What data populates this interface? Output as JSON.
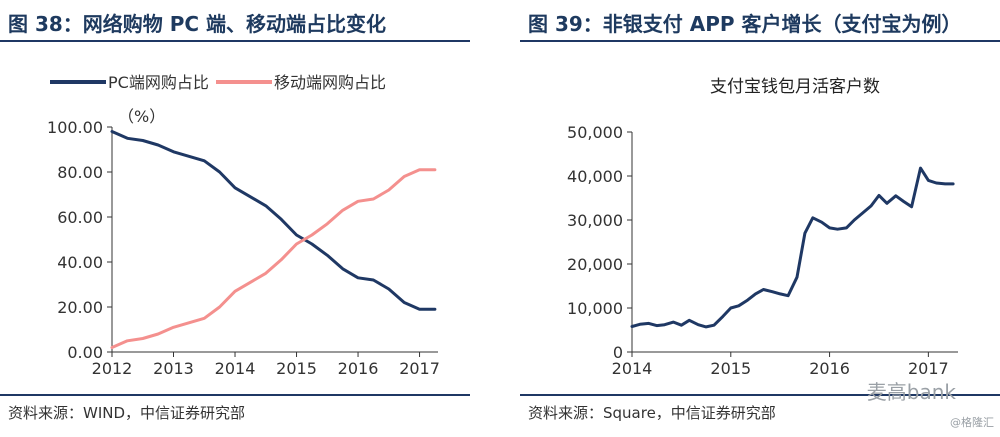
{
  "left": {
    "title": "图 38：网络购物 PC 端、移动端占比变化",
    "source": "资料来源：WIND，中信证券研究部",
    "unit_label": "（%）"
  },
  "right": {
    "title": "图 39：非银支付 APP 客户增长（支付宝为例）",
    "source": "资料来源：Square，中信证券研究部"
  },
  "watermark": {
    "brand": "麦高bank",
    "corner": "@格隆汇"
  },
  "chart_data": [
    {
      "type": "line",
      "title": "",
      "ylabel": "（%）",
      "xlim": [
        2012,
        2017.3
      ],
      "ylim": [
        0,
        100
      ],
      "y_ticks": [
        "0.00",
        "20.00",
        "40.00",
        "60.00",
        "80.00",
        "100.00"
      ],
      "y_tick_values": [
        0,
        20,
        40,
        60,
        80,
        100
      ],
      "x_ticks": [
        "2012",
        "2013",
        "2014",
        "2015",
        "2016",
        "2017"
      ],
      "x_tick_values": [
        2012,
        2013,
        2014,
        2015,
        2016,
        2017
      ],
      "legend_position": "top",
      "grid": false,
      "series": [
        {
          "name": "PC端网购占比",
          "color": "#1f3864",
          "x": [
            2012,
            2012.25,
            2012.5,
            2012.75,
            2013,
            2013.25,
            2013.5,
            2013.75,
            2014,
            2014.25,
            2014.5,
            2014.75,
            2015,
            2015.25,
            2015.5,
            2015.75,
            2016,
            2016.25,
            2016.5,
            2016.75,
            2017,
            2017.25
          ],
          "y": [
            98,
            95,
            94,
            92,
            89,
            87,
            85,
            80,
            73,
            69,
            65,
            59,
            52,
            48,
            43,
            37,
            33,
            32,
            28,
            22,
            19,
            19
          ]
        },
        {
          "name": "移动端网购占比",
          "color": "#f4908e",
          "x": [
            2012,
            2012.25,
            2012.5,
            2012.75,
            2013,
            2013.25,
            2013.5,
            2013.75,
            2014,
            2014.25,
            2014.5,
            2014.75,
            2015,
            2015.25,
            2015.5,
            2015.75,
            2016,
            2016.25,
            2016.5,
            2016.75,
            2017,
            2017.25
          ],
          "y": [
            2,
            5,
            6,
            8,
            11,
            13,
            15,
            20,
            27,
            31,
            35,
            41,
            48,
            52,
            57,
            63,
            67,
            68,
            72,
            78,
            81,
            81
          ]
        }
      ]
    },
    {
      "type": "line",
      "title": "支付宝钱包月活客户数",
      "xlim": [
        2014,
        2017.3
      ],
      "ylim": [
        0,
        50000
      ],
      "y_ticks": [
        "0",
        "10,000",
        "20,000",
        "30,000",
        "40,000",
        "50,000"
      ],
      "y_tick_values": [
        0,
        10000,
        20000,
        30000,
        40000,
        50000
      ],
      "x_ticks": [
        "2014",
        "2015",
        "2016",
        "2017"
      ],
      "x_tick_values": [
        2014,
        2015,
        2016,
        2017
      ],
      "legend_position": "none",
      "grid": false,
      "series": [
        {
          "color": "#1f3864",
          "x": [
            2014.0,
            2014.08,
            2014.17,
            2014.25,
            2014.33,
            2014.42,
            2014.5,
            2014.58,
            2014.67,
            2014.75,
            2014.83,
            2014.92,
            2015.0,
            2015.08,
            2015.17,
            2015.25,
            2015.33,
            2015.42,
            2015.5,
            2015.58,
            2015.67,
            2015.75,
            2015.83,
            2015.92,
            2016.0,
            2016.08,
            2016.17,
            2016.25,
            2016.33,
            2016.42,
            2016.5,
            2016.58,
            2016.67,
            2016.75,
            2016.83,
            2016.92,
            2017.0,
            2017.08,
            2017.17,
            2017.25
          ],
          "y": [
            5800,
            6300,
            6500,
            6000,
            6200,
            6800,
            6100,
            7200,
            6200,
            5700,
            6100,
            8100,
            10000,
            10500,
            11800,
            13200,
            14200,
            13700,
            13200,
            12800,
            17000,
            27000,
            30500,
            29500,
            28200,
            27900,
            28200,
            30000,
            31500,
            33200,
            35600,
            33800,
            35500,
            34200,
            33000,
            41800,
            39000,
            38400,
            38200,
            38200
          ]
        }
      ]
    }
  ]
}
